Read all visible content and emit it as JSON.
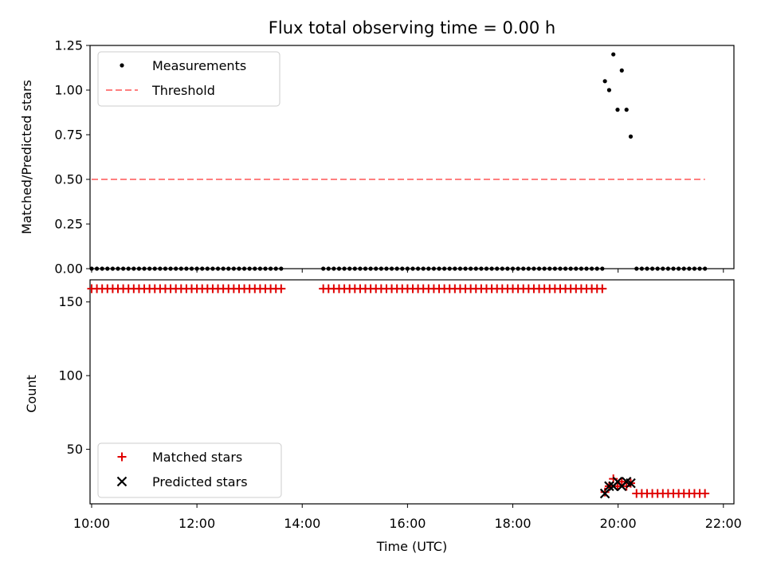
{
  "chart_data": [
    {
      "type": "scatter",
      "title": "Flux total observing time = 0.00 h",
      "xlabel": "",
      "ylabel": "Matched/Predicted stars",
      "xlim": [
        9.97,
        22.2
      ],
      "ylim": [
        0,
        1.25
      ],
      "yticks": [
        0.0,
        0.25,
        0.5,
        0.75,
        1.0,
        1.25
      ],
      "ytick_labels": [
        "0.00",
        "0.25",
        "0.50",
        "0.75",
        "1.00",
        "1.25"
      ],
      "xticks": [
        10,
        12,
        14,
        16,
        18,
        20,
        22
      ],
      "legend": "top-left",
      "series": [
        {
          "name": "Measurements",
          "marker": "dot",
          "color": "#000000",
          "segments": [
            {
              "start": 10.0,
              "end": 13.55,
              "step": 0.1,
              "value": 0
            },
            {
              "start": 14.4,
              "end": 19.7,
              "step": 0.1,
              "value": 0
            },
            {
              "start": 20.35,
              "end": 21.65,
              "step": 0.1,
              "value": 0
            }
          ],
          "points": [
            [
              19.75,
              1.05
            ],
            [
              19.83,
              1.0
            ],
            [
              19.91,
              1.2
            ],
            [
              19.99,
              0.89
            ],
            [
              20.07,
              1.11
            ],
            [
              20.16,
              0.89
            ],
            [
              20.24,
              0.74
            ]
          ]
        },
        {
          "name": "Threshold",
          "marker": "dashed-line",
          "color": "#ff7f7f",
          "points": [
            [
              10.0,
              0.5
            ],
            [
              21.65,
              0.5
            ]
          ]
        }
      ]
    },
    {
      "type": "scatter",
      "title": "",
      "xlabel": "Time (UTC)",
      "ylabel": "Count",
      "xlim": [
        9.97,
        22.2
      ],
      "ylim": [
        13,
        165
      ],
      "yticks": [
        50,
        100,
        150
      ],
      "xticks": [
        10,
        12,
        14,
        16,
        18,
        20,
        22
      ],
      "xtick_labels": [
        "10:00",
        "12:00",
        "14:00",
        "16:00",
        "18:00",
        "20:00",
        "22:00"
      ],
      "legend": "bottom-left",
      "series": [
        {
          "name": "Matched stars",
          "marker": "plus",
          "color": "#e00000",
          "segments": [
            {
              "start": 10.0,
              "end": 13.55,
              "step": 0.1,
              "value": 159
            },
            {
              "start": 14.4,
              "end": 19.7,
              "step": 0.1,
              "value": 159
            },
            {
              "start": 20.35,
              "end": 21.65,
              "step": 0.1,
              "value": 20
            }
          ],
          "points": [
            [
              19.75,
              21
            ],
            [
              19.83,
              25
            ],
            [
              19.91,
              30
            ],
            [
              19.99,
              25
            ],
            [
              20.07,
              28
            ],
            [
              20.16,
              25
            ],
            [
              20.24,
              27
            ]
          ]
        },
        {
          "name": "Predicted stars",
          "marker": "x",
          "color": "#000000",
          "points": [
            [
              19.75,
              20
            ],
            [
              19.83,
              25
            ],
            [
              19.91,
              25
            ],
            [
              19.99,
              28
            ],
            [
              20.07,
              25
            ],
            [
              20.16,
              28
            ],
            [
              20.24,
              27
            ]
          ]
        }
      ]
    }
  ]
}
